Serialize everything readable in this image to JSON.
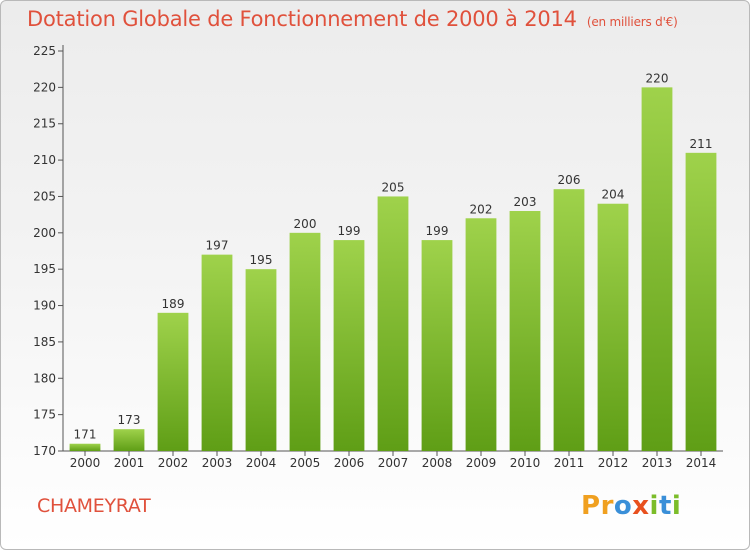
{
  "chart_data": {
    "type": "bar",
    "title": "Dotation Globale de Fonctionnement de 2000 à 2014",
    "subtitle": "(en milliers d'€)",
    "categories": [
      "2000",
      "2001",
      "2002",
      "2003",
      "2004",
      "2005",
      "2006",
      "2007",
      "2008",
      "2009",
      "2010",
      "2011",
      "2012",
      "2013",
      "2014"
    ],
    "values": [
      171,
      173,
      189,
      197,
      195,
      200,
      199,
      205,
      199,
      202,
      203,
      206,
      204,
      220,
      211
    ],
    "ylim": [
      170,
      225
    ],
    "yticks": [
      170,
      175,
      180,
      185,
      190,
      195,
      200,
      205,
      210,
      215,
      220,
      225
    ],
    "grid": false,
    "legend": "none",
    "colors": {
      "bar_top": "#9fd24b",
      "bar_bottom": "#5f9e16",
      "title": "#e0513c",
      "axis": "#555555"
    }
  },
  "commune": "CHAMEYRAT",
  "logo": {
    "text": "Proxiti",
    "letters": [
      "P",
      "r",
      "o",
      "x",
      "i",
      "t",
      "i"
    ],
    "colors": [
      "#f0a020",
      "#f0a020",
      "#3a8fd8",
      "#e8501e",
      "#7cbd2a",
      "#3a8fd8",
      "#7cbd2a"
    ]
  }
}
